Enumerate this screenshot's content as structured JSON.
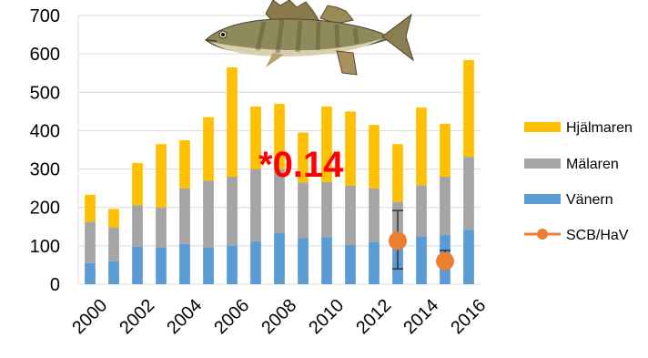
{
  "chart_data": {
    "type": "bar",
    "stacked": true,
    "categories": [
      "2000",
      "2001",
      "2002",
      "2003",
      "2004",
      "2005",
      "2006",
      "2007",
      "2008",
      "2009",
      "2010",
      "2011",
      "2012",
      "2013",
      "2014",
      "2015",
      "2016"
    ],
    "x_tick_labels": [
      "2000",
      "2002",
      "2004",
      "2006",
      "2008",
      "2010",
      "2012",
      "2014",
      "2016"
    ],
    "ylim": [
      0,
      700
    ],
    "y_ticks": [
      0,
      100,
      200,
      300,
      400,
      500,
      600,
      700
    ],
    "grid": true,
    "legend_position": "right",
    "series": [
      {
        "name": "Vänern",
        "color": "#5b9bd5",
        "values": [
          55,
          60,
          98,
          95,
          105,
          95,
          100,
          112,
          133,
          120,
          123,
          102,
          110,
          115,
          125,
          128,
          142
        ]
      },
      {
        "name": "Mälaren",
        "color": "#a5a5a5",
        "values": [
          108,
          88,
          108,
          105,
          145,
          175,
          180,
          188,
          167,
          145,
          143,
          155,
          140,
          100,
          133,
          152,
          190
        ]
      },
      {
        "name": "Hjälmaren",
        "color": "#ffc000",
        "values": [
          70,
          48,
          110,
          165,
          125,
          165,
          285,
          163,
          170,
          130,
          197,
          193,
          165,
          150,
          202,
          138,
          252
        ]
      }
    ],
    "points": {
      "name": "SCB/HaV",
      "color": "#ed7d31",
      "data": [
        {
          "x": "2013",
          "y": 113,
          "error_low": 40,
          "error_high": 192
        },
        {
          "x": "2015",
          "y": 60,
          "error_low": 45,
          "error_high": 88
        }
      ]
    },
    "annotation": "*0.14"
  },
  "legend": {
    "items": [
      {
        "label": "Hjälmaren",
        "color": "#ffc000",
        "marker": "bar"
      },
      {
        "label": "Mälaren",
        "color": "#a5a5a5",
        "marker": "bar"
      },
      {
        "label": "Vänern",
        "color": "#5b9bd5",
        "marker": "bar"
      },
      {
        "label": "SCB/HaV",
        "color": "#ed7d31",
        "marker": "line-dot"
      }
    ]
  },
  "image": {
    "icon": "zander-fish-icon"
  }
}
